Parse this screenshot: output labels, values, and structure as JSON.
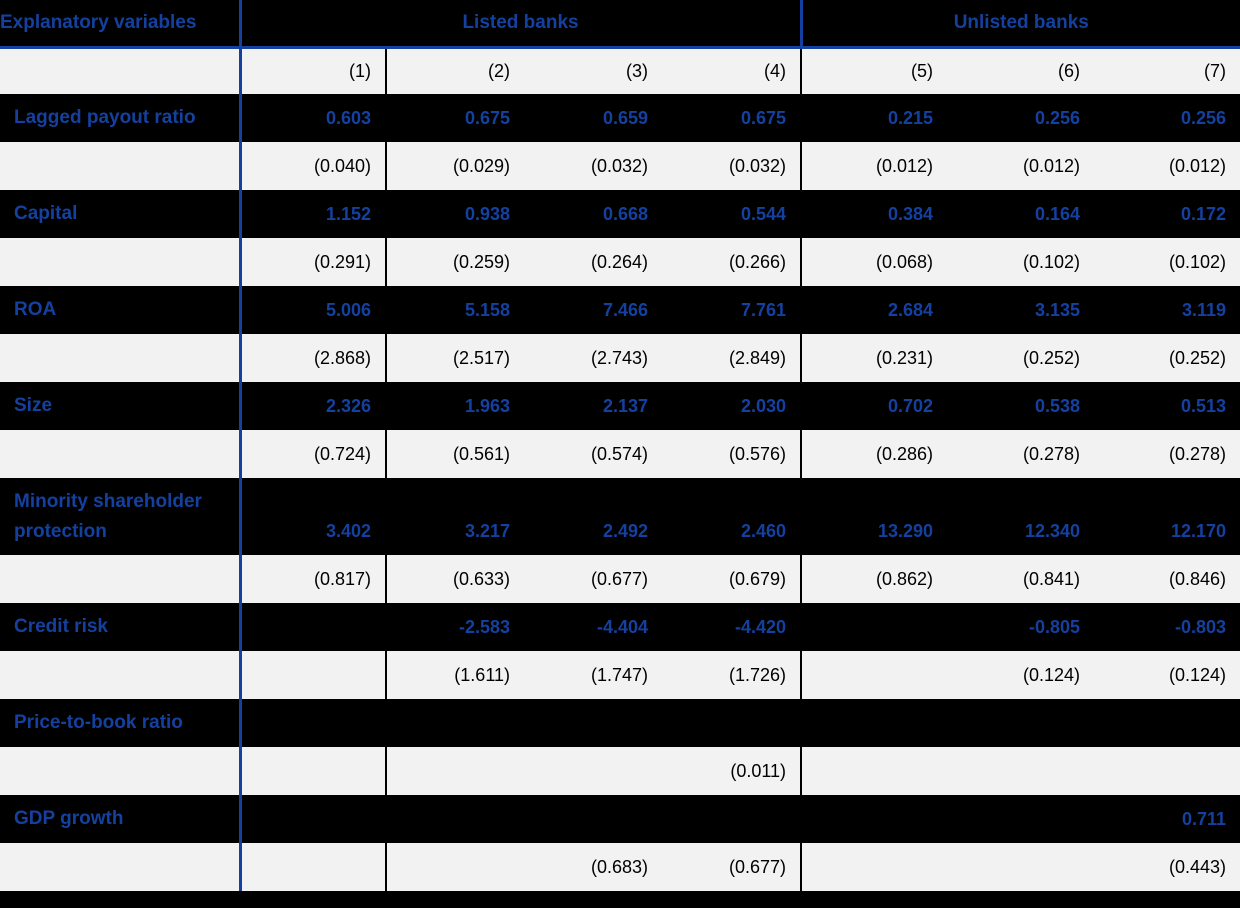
{
  "colors": {
    "accent_blue": "#14419F",
    "row_dark": "#000000",
    "row_light": "#F2F2F2"
  },
  "table": {
    "header": {
      "label": "Explanatory variables",
      "group_listed": "Listed banks",
      "group_unlisted": "Unlisted banks"
    },
    "column_numbers": [
      "(1)",
      "(2)",
      "(3)",
      "(4)",
      "(5)",
      "(6)",
      "(7)"
    ],
    "rows": [
      {
        "label": "Lagged payout ratio",
        "coefficients": [
          "0.603",
          "0.675",
          "0.659",
          "0.675",
          "0.215",
          "0.256",
          "0.256"
        ],
        "std_errors": [
          "(0.040)",
          "(0.029)",
          "(0.032)",
          "(0.032)",
          "(0.012)",
          "(0.012)",
          "(0.012)"
        ]
      },
      {
        "label": "Capital",
        "coefficients": [
          "1.152",
          "0.938",
          "0.668",
          "0.544",
          "0.384",
          "0.164",
          "0.172"
        ],
        "std_errors": [
          "(0.291)",
          "(0.259)",
          "(0.264)",
          "(0.266)",
          "(0.068)",
          "(0.102)",
          "(0.102)"
        ]
      },
      {
        "label": "ROA",
        "coefficients": [
          "5.006",
          "5.158",
          "7.466",
          "7.761",
          "2.684",
          "3.135",
          "3.119"
        ],
        "std_errors": [
          "(2.868)",
          "(2.517)",
          "(2.743)",
          "(2.849)",
          "(0.231)",
          "(0.252)",
          "(0.252)"
        ]
      },
      {
        "label": "Size",
        "coefficients": [
          "2.326",
          "1.963",
          "2.137",
          "2.030",
          "0.702",
          "0.538",
          "0.513"
        ],
        "std_errors": [
          "(0.724)",
          "(0.561)",
          "(0.574)",
          "(0.576)",
          "(0.286)",
          "(0.278)",
          "(0.278)"
        ]
      },
      {
        "label": "Minority shareholder protection",
        "tall": true,
        "coefficients": [
          "3.402",
          "3.217",
          "2.492",
          "2.460",
          "13.290",
          "12.340",
          "12.170"
        ],
        "std_errors": [
          "(0.817)",
          "(0.633)",
          "(0.677)",
          "(0.679)",
          "(0.862)",
          "(0.841)",
          "(0.846)"
        ]
      },
      {
        "label": "Credit risk",
        "coefficients": [
          "",
          "-2.583",
          "-4.404",
          "-4.420",
          "",
          "-0.805",
          "-0.803"
        ],
        "std_errors": [
          "",
          "(1.611)",
          "(1.747)",
          "(1.726)",
          "",
          "(0.124)",
          "(0.124)"
        ]
      },
      {
        "label": "Price-to-book ratio",
        "coefficients": [
          "",
          "",
          "",
          "",
          "",
          "",
          ""
        ],
        "std_errors": [
          "",
          "",
          "",
          "(0.011)",
          "",
          "",
          ""
        ]
      },
      {
        "label": "GDP growth",
        "coefficients": [
          "",
          "",
          "",
          "",
          "",
          "",
          "0.711"
        ],
        "std_errors": [
          "",
          "",
          "(0.683)",
          "(0.677)",
          "",
          "",
          "(0.443)"
        ]
      }
    ]
  }
}
